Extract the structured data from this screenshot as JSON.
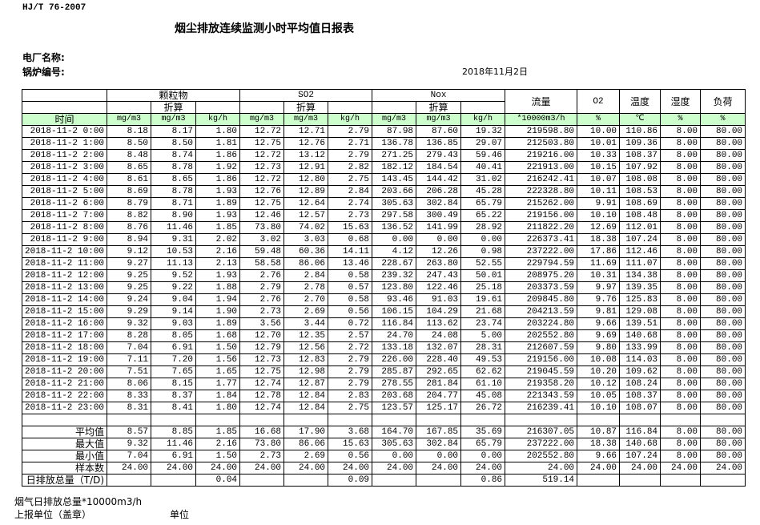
{
  "header": {
    "standard": "HJ/T  76-2007",
    "title": "烟尘排放连续监测小时平均值日报表",
    "plant_label": "电厂名称:",
    "boiler_label": "锅炉编号:",
    "date": "2018年11月2日"
  },
  "table": {
    "groups": {
      "particulate": "颗粒物",
      "so2": "SO2",
      "nox": "Nox",
      "flow": "流量",
      "o2": "O2",
      "temp": "温度",
      "humidity": "湿度",
      "load": "负荷"
    },
    "converted_label": "折算",
    "time_label": "时间",
    "units": [
      "mg/m3",
      "mg/m3",
      "kg/h",
      "mg/m3",
      "mg/m3",
      "kg/h",
      "mg/m3",
      "mg/m3",
      "kg/h",
      "*10000m3/h",
      "%",
      "℃",
      "%",
      "%"
    ],
    "rows": [
      [
        "2018-11-2 0:00",
        "8.18",
        "8.17",
        "1.80",
        "12.72",
        "12.71",
        "2.79",
        "87.98",
        "87.60",
        "19.32",
        "219598.80",
        "10.00",
        "110.86",
        "8.00",
        "80.00"
      ],
      [
        "2018-11-2 1:00",
        "8.50",
        "8.50",
        "1.81",
        "12.75",
        "12.76",
        "2.71",
        "136.78",
        "136.85",
        "29.07",
        "212503.80",
        "10.01",
        "109.36",
        "8.00",
        "80.00"
      ],
      [
        "2018-11-2 2:00",
        "8.48",
        "8.74",
        "1.86",
        "12.72",
        "13.12",
        "2.79",
        "271.25",
        "279.43",
        "59.46",
        "219216.00",
        "10.33",
        "108.37",
        "8.00",
        "80.00"
      ],
      [
        "2018-11-2 3:00",
        "8.65",
        "8.78",
        "1.92",
        "12.73",
        "12.91",
        "2.82",
        "182.12",
        "184.54",
        "40.41",
        "221913.00",
        "10.15",
        "107.92",
        "8.00",
        "80.00"
      ],
      [
        "2018-11-2 4:00",
        "8.61",
        "8.65",
        "1.86",
        "12.72",
        "12.80",
        "2.75",
        "143.45",
        "144.42",
        "31.02",
        "216242.41",
        "10.07",
        "108.08",
        "8.00",
        "80.00"
      ],
      [
        "2018-11-2 5:00",
        "8.69",
        "8.78",
        "1.93",
        "12.76",
        "12.89",
        "2.84",
        "203.66",
        "206.28",
        "45.28",
        "222328.80",
        "10.11",
        "108.53",
        "8.00",
        "80.00"
      ],
      [
        "2018-11-2 6:00",
        "8.79",
        "8.71",
        "1.89",
        "12.75",
        "12.64",
        "2.74",
        "305.63",
        "302.84",
        "65.79",
        "215262.00",
        "9.91",
        "108.69",
        "8.00",
        "80.00"
      ],
      [
        "2018-11-2 7:00",
        "8.82",
        "8.90",
        "1.93",
        "12.46",
        "12.57",
        "2.73",
        "297.58",
        "300.49",
        "65.22",
        "219156.00",
        "10.10",
        "108.48",
        "8.00",
        "80.00"
      ],
      [
        "2018-11-2 8:00",
        "8.76",
        "11.46",
        "1.85",
        "73.80",
        "74.02",
        "15.63",
        "136.52",
        "141.99",
        "28.92",
        "211822.20",
        "12.69",
        "112.01",
        "8.00",
        "80.00"
      ],
      [
        "2018-11-2 9:00",
        "8.94",
        "9.31",
        "2.02",
        "3.02",
        "3.03",
        "0.68",
        "0.00",
        "0.00",
        "0.00",
        "226373.41",
        "18.38",
        "107.24",
        "8.00",
        "80.00"
      ],
      [
        "2018-11-2 10:00",
        "9.12",
        "10.53",
        "2.16",
        "59.48",
        "60.36",
        "14.11",
        "4.12",
        "12.26",
        "0.98",
        "237222.00",
        "17.86",
        "112.46",
        "8.00",
        "80.00"
      ],
      [
        "2018-11-2 11:00",
        "9.27",
        "11.13",
        "2.13",
        "58.58",
        "86.06",
        "13.46",
        "228.67",
        "263.80",
        "52.55",
        "229794.59",
        "11.69",
        "111.07",
        "8.00",
        "80.00"
      ],
      [
        "2018-11-2 12:00",
        "9.25",
        "9.52",
        "1.93",
        "2.76",
        "2.84",
        "0.58",
        "239.32",
        "247.43",
        "50.01",
        "208975.20",
        "10.31",
        "134.38",
        "8.00",
        "80.00"
      ],
      [
        "2018-11-2 13:00",
        "9.25",
        "9.22",
        "1.88",
        "2.79",
        "2.78",
        "0.57",
        "123.80",
        "122.46",
        "25.18",
        "203373.59",
        "9.97",
        "139.35",
        "8.00",
        "80.00"
      ],
      [
        "2018-11-2 14:00",
        "9.24",
        "9.04",
        "1.94",
        "2.76",
        "2.70",
        "0.58",
        "93.46",
        "91.03",
        "19.61",
        "209845.80",
        "9.76",
        "125.83",
        "8.00",
        "80.00"
      ],
      [
        "2018-11-2 15:00",
        "9.29",
        "9.14",
        "1.90",
        "2.73",
        "2.69",
        "0.56",
        "106.15",
        "104.29",
        "21.68",
        "204213.59",
        "9.81",
        "129.08",
        "8.00",
        "80.00"
      ],
      [
        "2018-11-2 16:00",
        "9.32",
        "9.03",
        "1.89",
        "3.56",
        "3.44",
        "0.72",
        "116.84",
        "113.62",
        "23.74",
        "203224.80",
        "9.66",
        "139.51",
        "8.00",
        "80.00"
      ],
      [
        "2018-11-2 17:00",
        "8.28",
        "8.05",
        "1.68",
        "12.70",
        "12.35",
        "2.57",
        "24.70",
        "24.08",
        "5.00",
        "202552.80",
        "9.69",
        "140.68",
        "8.00",
        "80.00"
      ],
      [
        "2018-11-2 18:00",
        "7.04",
        "6.91",
        "1.50",
        "12.79",
        "12.56",
        "2.72",
        "133.18",
        "132.07",
        "28.31",
        "212607.59",
        "9.80",
        "133.99",
        "8.00",
        "80.00"
      ],
      [
        "2018-11-2 19:00",
        "7.11",
        "7.20",
        "1.56",
        "12.73",
        "12.83",
        "2.79",
        "226.00",
        "228.40",
        "49.53",
        "219156.00",
        "10.08",
        "114.03",
        "8.00",
        "80.00"
      ],
      [
        "2018-11-2 20:00",
        "7.51",
        "7.65",
        "1.65",
        "12.75",
        "12.98",
        "2.79",
        "285.87",
        "292.65",
        "62.62",
        "219045.59",
        "10.20",
        "109.62",
        "8.00",
        "80.00"
      ],
      [
        "2018-11-2 21:00",
        "8.06",
        "8.15",
        "1.77",
        "12.74",
        "12.87",
        "2.79",
        "278.55",
        "281.84",
        "61.10",
        "219358.20",
        "10.12",
        "108.24",
        "8.00",
        "80.00"
      ],
      [
        "2018-11-2 22:00",
        "8.33",
        "8.37",
        "1.84",
        "12.78",
        "12.84",
        "2.83",
        "203.68",
        "204.77",
        "45.08",
        "221343.59",
        "10.05",
        "108.37",
        "8.00",
        "80.00"
      ],
      [
        "2018-11-2 23:00",
        "8.31",
        "8.41",
        "1.80",
        "12.74",
        "12.84",
        "2.75",
        "123.57",
        "125.17",
        "26.72",
        "216239.41",
        "10.10",
        "108.07",
        "8.00",
        "80.00"
      ]
    ],
    "summary": [
      [
        "平均值",
        "8.57",
        "8.85",
        "1.85",
        "16.68",
        "17.90",
        "3.68",
        "164.70",
        "167.85",
        "35.69",
        "216307.05",
        "10.87",
        "116.84",
        "8.00",
        "80.00"
      ],
      [
        "最大值",
        "9.32",
        "11.46",
        "2.16",
        "73.80",
        "86.06",
        "15.63",
        "305.63",
        "302.84",
        "65.79",
        "237222.00",
        "18.38",
        "140.68",
        "8.00",
        "80.00"
      ],
      [
        "最小值",
        "7.04",
        "6.91",
        "1.50",
        "2.73",
        "2.69",
        "0.56",
        "0.00",
        "0.00",
        "0.00",
        "202552.80",
        "9.66",
        "107.24",
        "8.00",
        "80.00"
      ],
      [
        "样本数",
        "24.00",
        "24.00",
        "24.00",
        "24.00",
        "24.00",
        "24.00",
        "24.00",
        "24.00",
        "24.00",
        "24.00",
        "24.00",
        "24.00",
        "24.00",
        "24.00"
      ],
      [
        "日排放总量（T/D)",
        "",
        "",
        "0.04",
        "",
        "",
        "0.09",
        "",
        "",
        "0.86",
        "519.14",
        "",
        "",
        "",
        ""
      ]
    ]
  },
  "footer": {
    "flue_gas_total": "烟气日排放总量*10000m3/h",
    "reporting_unit": "上报单位（盖章）",
    "unit": "单位"
  },
  "colors": {
    "units_row": "#ccffcc",
    "border": "#000000"
  }
}
